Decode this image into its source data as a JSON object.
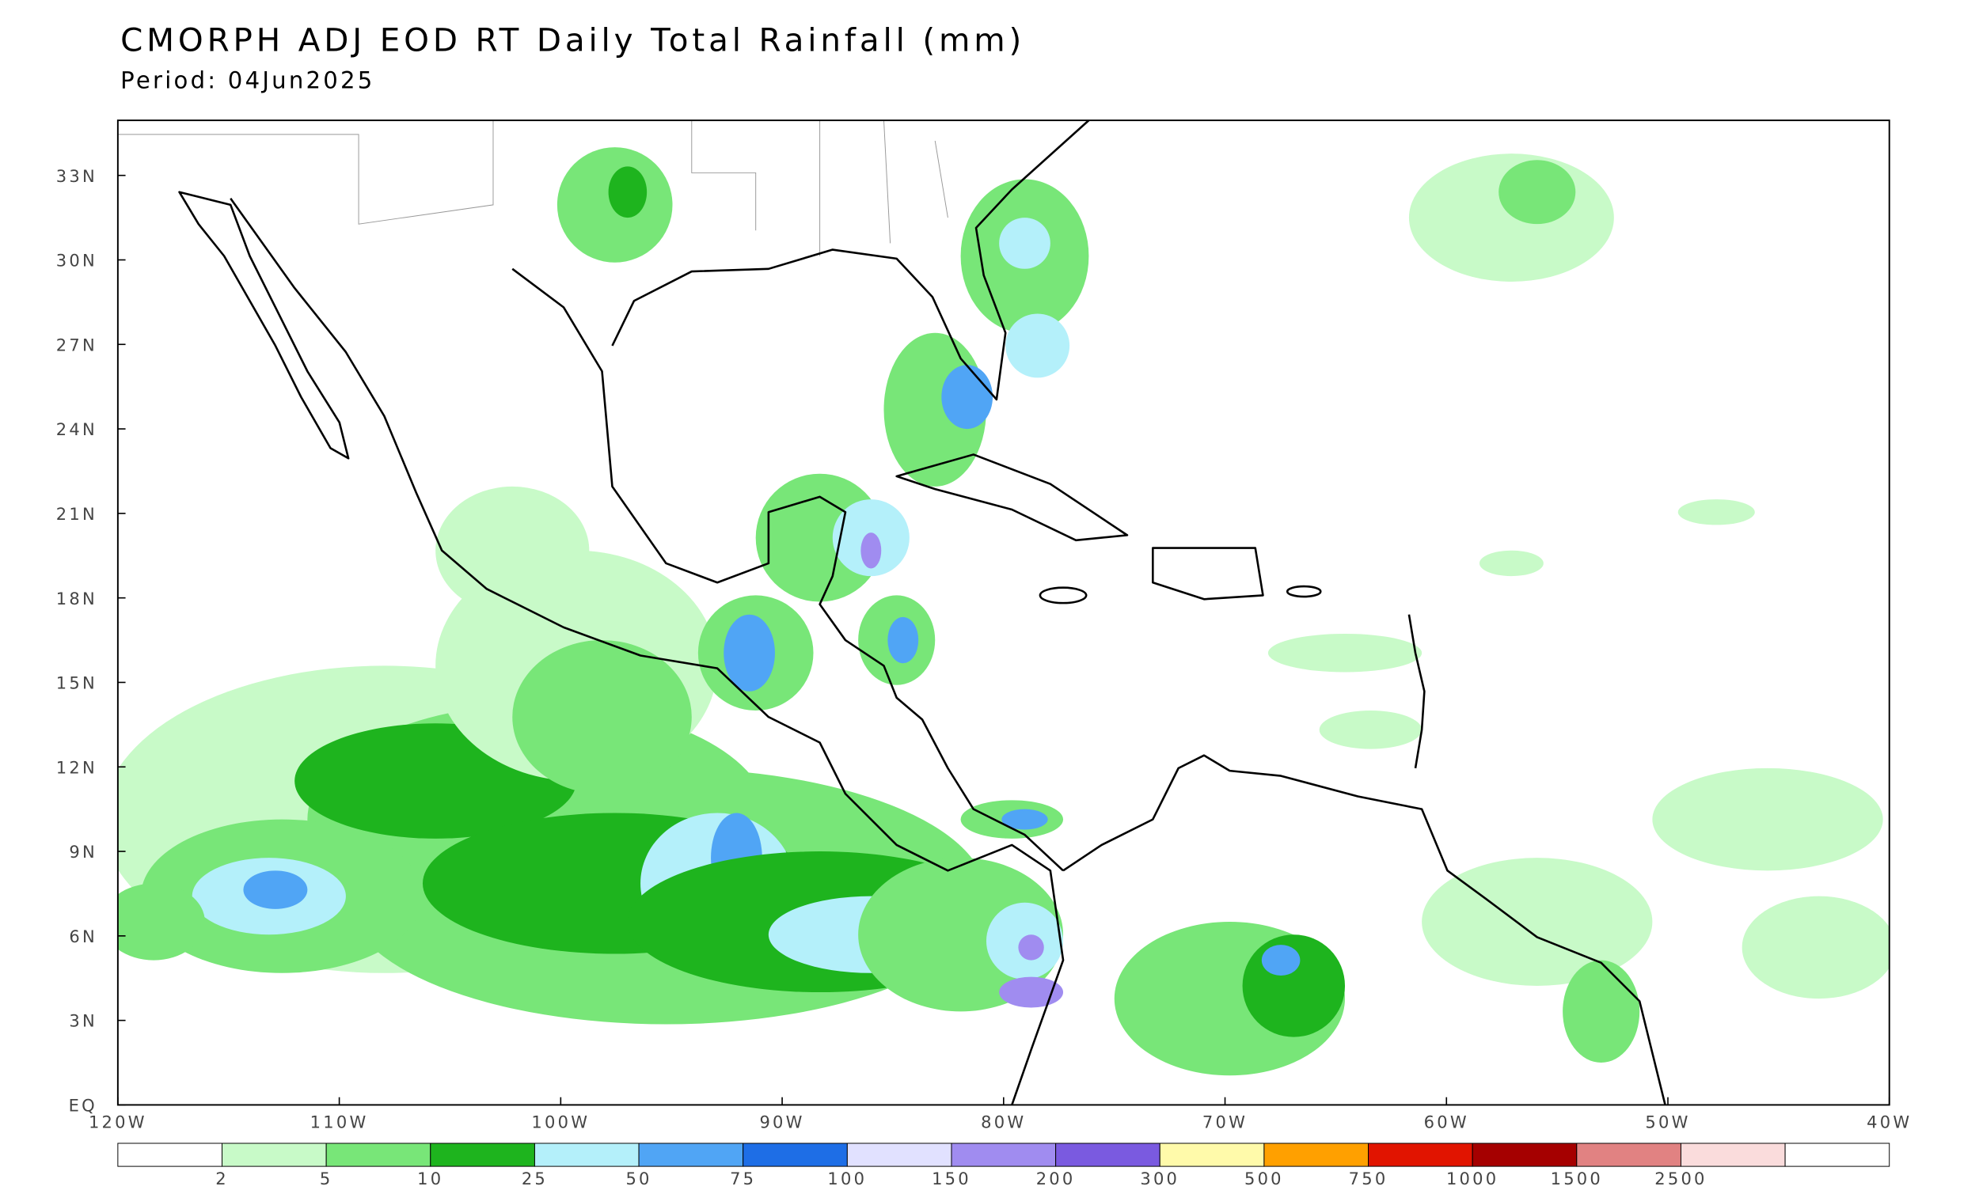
{
  "header": {
    "title": "CMORPH ADJ EOD RT Daily Total Rainfall (mm)",
    "period": "Period: 04Jun2025"
  },
  "map": {
    "lat_ticks": [
      "EQ",
      "3N",
      "6N",
      "9N",
      "12N",
      "15N",
      "18N",
      "21N",
      "24N",
      "27N",
      "30N",
      "33N"
    ],
    "lon_ticks": [
      "120W",
      "110W",
      "100W",
      "90W",
      "80W",
      "70W",
      "60W",
      "50W",
      "40W"
    ]
  },
  "legend": {
    "colors": [
      "#ffffff",
      "#c8fac8",
      "#78e678",
      "#1eb41e",
      "#b4f0fa",
      "#50a5f5",
      "#1e6ee6",
      "#e1e1ff",
      "#a08cf0",
      "#7a5ae0",
      "#fffaaa",
      "#ffa000",
      "#e11400",
      "#a50000",
      "#e18282",
      "#fadcdc",
      "#ffffff"
    ],
    "labels": [
      "2",
      "5",
      "10",
      "25",
      "50",
      "75",
      "100",
      "150",
      "200",
      "300",
      "500",
      "750",
      "1000",
      "1500",
      "2500"
    ]
  }
}
